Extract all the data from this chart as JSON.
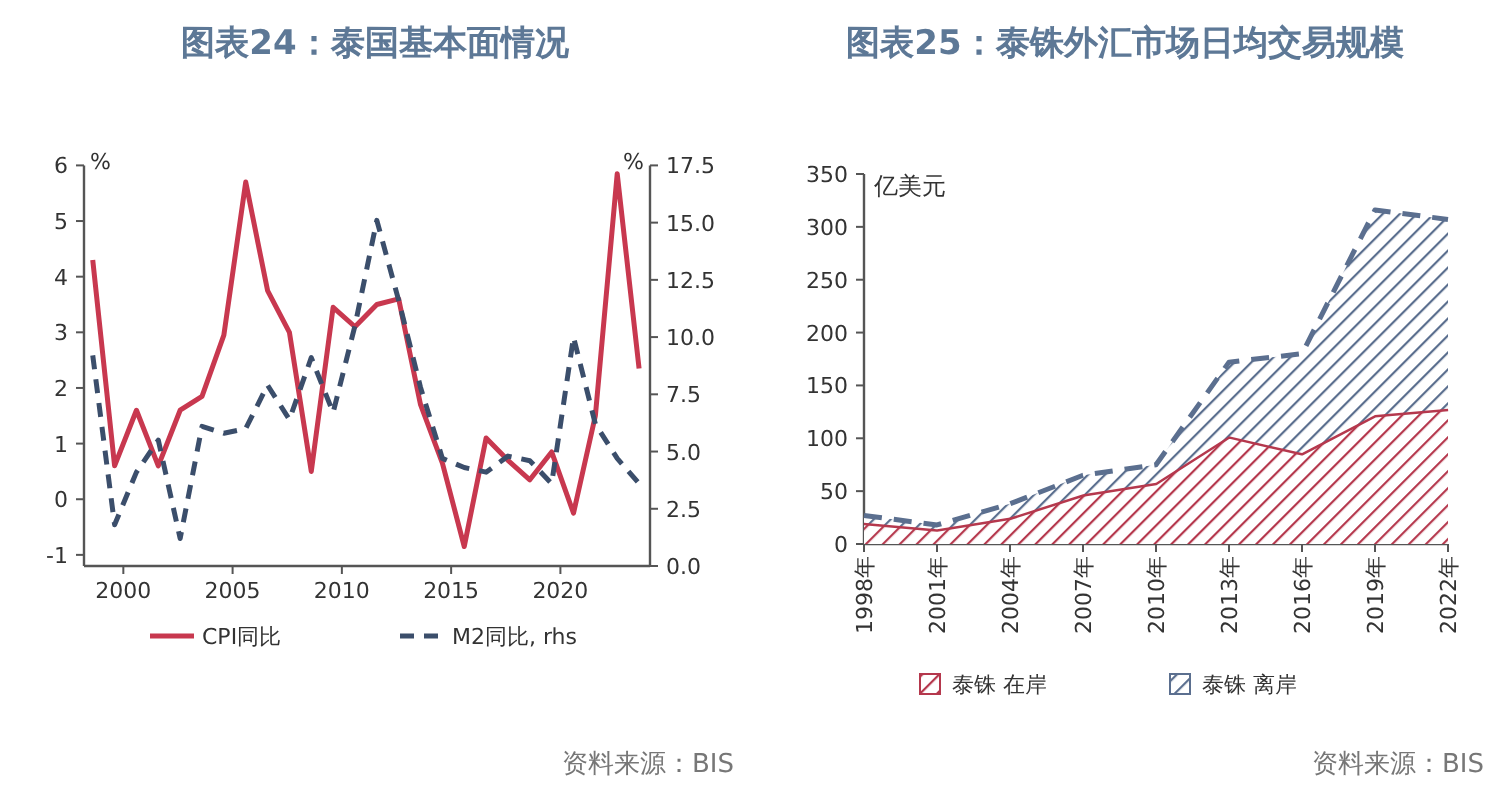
{
  "chart_data": [
    {
      "type": "line",
      "title": "图表24：泰国基本面情况",
      "ylabel": "%",
      "y2label": "%",
      "x": [
        1998.6,
        1999.6,
        2000.6,
        2001.6,
        2002.6,
        2003.6,
        2004.6,
        2005.6,
        2006.6,
        2007.6,
        2008.6,
        2009.6,
        2010.6,
        2011.6,
        2012.6,
        2013.6,
        2014.6,
        2015.6,
        2016.6,
        2017.6,
        2018.6,
        2019.6,
        2020.6,
        2021.6,
        2022.6,
        2023.6
      ],
      "series": [
        {
          "name": "CPI同比",
          "color": "#c8384f",
          "line_style": "solid",
          "values": [
            4.3,
            0.6,
            1.6,
            0.6,
            1.6,
            1.85,
            2.95,
            5.7,
            3.75,
            3.0,
            0.5,
            3.45,
            3.1,
            3.5,
            3.6,
            1.7,
            0.65,
            -0.85,
            1.1,
            0.7,
            0.35,
            0.85,
            -0.25,
            1.5,
            5.85,
            2.35
          ]
        },
        {
          "name": "M2同比, rhs",
          "color": "#3b4e6b",
          "line_style": "dashed",
          "axis": "y2",
          "values": [
            9.2,
            1.8,
            4.1,
            5.5,
            1.2,
            6.1,
            5.8,
            6.0,
            7.9,
            6.4,
            9.1,
            6.7,
            10.5,
            15.1,
            11.6,
            7.8,
            4.7,
            4.3,
            4.1,
            4.8,
            4.6,
            3.6,
            10.0,
            6.2,
            4.7,
            3.6
          ]
        }
      ],
      "xlim": [
        1998.2,
        2024.1
      ],
      "xticks": [
        2000,
        2005,
        2010,
        2015,
        2020
      ],
      "ylim": [
        -1.2,
        6
      ],
      "yticks": [
        -1,
        0,
        1,
        2,
        3,
        4,
        5,
        6
      ],
      "y2lim": [
        0,
        17.5
      ],
      "y2ticks": [
        {
          "value": 0,
          "label": "0.0"
        },
        {
          "value": 2.5,
          "label": "2.5"
        },
        {
          "value": 5,
          "label": "5.0"
        },
        {
          "value": 7.5,
          "label": "7.5"
        },
        {
          "value": 10,
          "label": "10.0"
        },
        {
          "value": 12.5,
          "label": "12.5"
        },
        {
          "value": 15,
          "label": "15.0"
        },
        {
          "value": 17.5,
          "label": "17.5"
        }
      ],
      "legend": "bottom",
      "annotations": [
        "资料来源：BIS"
      ]
    },
    {
      "type": "area",
      "stacked": true,
      "title": "图表25：泰铢外汇市场日均交易规模",
      "ylabel": "亿美元",
      "categories": [
        "1998年",
        "2001年",
        "2004年",
        "2007年",
        "2010年",
        "2013年",
        "2016年",
        "2019年",
        "2022年"
      ],
      "series": [
        {
          "name": "泰铢 在岸",
          "color": "#b5384d",
          "line_style": "solid",
          "values": [
            20,
            14,
            25,
            47,
            58,
            102,
            86,
            122,
            128
          ]
        },
        {
          "name": "泰铢 离岸",
          "color": "#5b6f8f",
          "line_style": "dashed",
          "values": [
            7,
            4,
            13,
            18,
            17,
            70,
            94,
            194,
            179
          ]
        }
      ],
      "ylim": [
        0,
        350
      ],
      "yticks": [
        0,
        50,
        100,
        150,
        200,
        250,
        300,
        350
      ],
      "legend": "bottom",
      "annotations": [
        "资料来源：BIS"
      ]
    }
  ]
}
